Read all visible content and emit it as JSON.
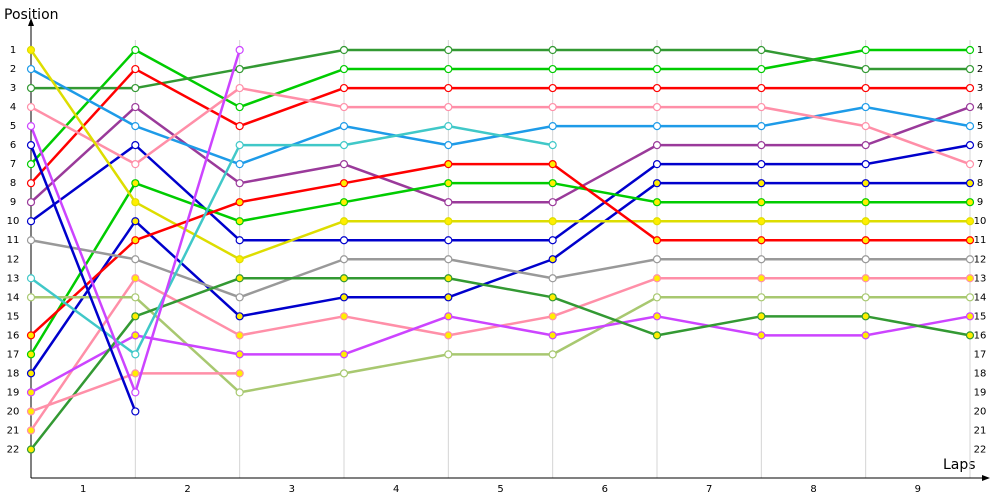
{
  "chart_data": {
    "type": "line",
    "x_label": "Laps",
    "y_label": "Position",
    "x": [
      0,
      1,
      2,
      3,
      4,
      5,
      6,
      7,
      8,
      9
    ],
    "xlim": [
      0,
      9
    ],
    "xticks": [
      {
        "value": 0.5,
        "label": "1"
      },
      {
        "value": 1.5,
        "label": "2"
      },
      {
        "value": 2.5,
        "label": "3"
      },
      {
        "value": 3.5,
        "label": "4"
      },
      {
        "value": 4.5,
        "label": "5"
      },
      {
        "value": 5.5,
        "label": "6"
      },
      {
        "value": 6.5,
        "label": "7"
      },
      {
        "value": 7.5,
        "label": "8"
      },
      {
        "value": 8.5,
        "label": "9"
      }
    ],
    "grid_x": [
      1,
      2,
      3,
      4,
      5,
      6,
      7,
      8,
      9
    ],
    "ylim": [
      0,
      23.5
    ],
    "y_inverted": true,
    "yticks": [
      1,
      2,
      3,
      4,
      5,
      6,
      7,
      8,
      9,
      10,
      11,
      12,
      13,
      14,
      15,
      16,
      17,
      18,
      19,
      20,
      21,
      22
    ],
    "series": [
      {
        "color": "#00cc00",
        "marker_fill": "#ffffff",
        "values": [
          7,
          1,
          4,
          2,
          2,
          2,
          2,
          2,
          1,
          1
        ]
      },
      {
        "color": "#339933",
        "marker_fill": "#ffffff",
        "values": [
          3,
          3,
          2,
          1,
          1,
          1,
          1,
          1,
          2,
          2
        ]
      },
      {
        "color": "#ff0000",
        "marker_fill": "#ffffff",
        "values": [
          8,
          2,
          5,
          3,
          3,
          3,
          3,
          3,
          3,
          3
        ]
      },
      {
        "color": "#9a3a9a",
        "marker_fill": "#ffffff",
        "values": [
          9,
          4,
          8,
          7,
          9,
          9,
          6,
          6,
          6,
          4
        ]
      },
      {
        "color": "#1e9be8",
        "marker_fill": "#ffffff",
        "values": [
          2,
          5,
          7,
          5,
          6,
          5,
          5,
          5,
          4,
          5
        ]
      },
      {
        "color": "#0000cc",
        "marker_fill": "#ffffff",
        "values": [
          10,
          6,
          11,
          11,
          11,
          11,
          7,
          7,
          7,
          6
        ]
      },
      {
        "color": "#ff8fa8",
        "marker_fill": "#ffffff",
        "values": [
          4,
          7,
          3,
          4,
          4,
          4,
          4,
          4,
          5,
          7
        ]
      },
      {
        "color": "#0000cc",
        "marker_fill": "#ffee00",
        "values": [
          18,
          10,
          15,
          14,
          14,
          12,
          8,
          8,
          8,
          8
        ]
      },
      {
        "color": "#00cc00",
        "marker_fill": "#ffee00",
        "values": [
          17,
          8,
          10,
          9,
          8,
          8,
          9,
          9,
          9,
          9
        ]
      },
      {
        "color": "#dddd00",
        "marker_fill": "#ffee00",
        "values": [
          1,
          9,
          12,
          10,
          10,
          10,
          10,
          10,
          10,
          10
        ]
      },
      {
        "color": "#ff0000",
        "marker_fill": "#ffee00",
        "values": [
          16,
          11,
          9,
          8,
          7,
          7,
          11,
          11,
          11,
          11
        ]
      },
      {
        "color": "#999999",
        "marker_fill": "#ffffff",
        "values": [
          11,
          12,
          14,
          12,
          12,
          13,
          12,
          12,
          12,
          12
        ]
      },
      {
        "color": "#ff8fa8",
        "marker_fill": "#ffee00",
        "values": [
          21,
          13,
          16,
          15,
          16,
          15,
          13,
          13,
          13,
          13
        ]
      },
      {
        "color": "#a8c870",
        "marker_fill": "#ffffff",
        "values": [
          14,
          14,
          19,
          18,
          17,
          17,
          14,
          14,
          14,
          14
        ]
      },
      {
        "color": "#cc44ff",
        "marker_fill": "#ffee00",
        "values": [
          19,
          16,
          17,
          17,
          15,
          16,
          15,
          16,
          16,
          15
        ]
      },
      {
        "color": "#339933",
        "marker_fill": "#ffee00",
        "values": [
          22,
          15,
          13,
          13,
          13,
          14,
          16,
          15,
          15,
          16
        ]
      },
      {
        "color": "#40c8c8",
        "marker_fill": "#ffffff",
        "values": [
          13,
          17,
          6,
          6,
          5,
          6,
          null,
          null,
          null,
          null
        ]
      },
      {
        "color": "#ff8fa8",
        "marker_fill": "#ffee00",
        "values": [
          20,
          18,
          18,
          null,
          null,
          null,
          null,
          null,
          null,
          null
        ]
      },
      {
        "color": "#cc44ff",
        "marker_fill": "#ffffff",
        "values": [
          5,
          19,
          1,
          null,
          null,
          null,
          null,
          null,
          null,
          null
        ]
      },
      {
        "color": "#0000cc",
        "marker_fill": "#ffffff",
        "values": [
          6,
          20,
          null,
          null,
          null,
          null,
          null,
          null,
          null,
          null
        ]
      }
    ]
  }
}
